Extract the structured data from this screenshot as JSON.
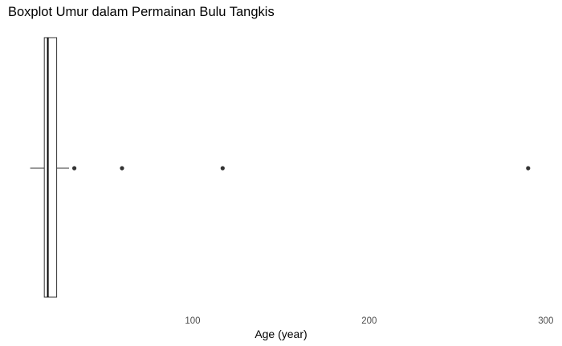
{
  "chart_data": {
    "type": "boxplot",
    "title": "Boxplot Umur dalam Permainan Bulu Tangkis",
    "xlabel": "Age (year)",
    "ylabel": "",
    "xlim": [
      0,
      301
    ],
    "x_ticks": [
      100,
      200,
      300
    ],
    "grid": false,
    "orientation": "horizontal",
    "box": {
      "whisker_low": 8,
      "q1": 16,
      "median": 18,
      "q3": 23,
      "whisker_high": 30
    },
    "outliers": [
      33,
      60,
      117,
      290
    ]
  }
}
